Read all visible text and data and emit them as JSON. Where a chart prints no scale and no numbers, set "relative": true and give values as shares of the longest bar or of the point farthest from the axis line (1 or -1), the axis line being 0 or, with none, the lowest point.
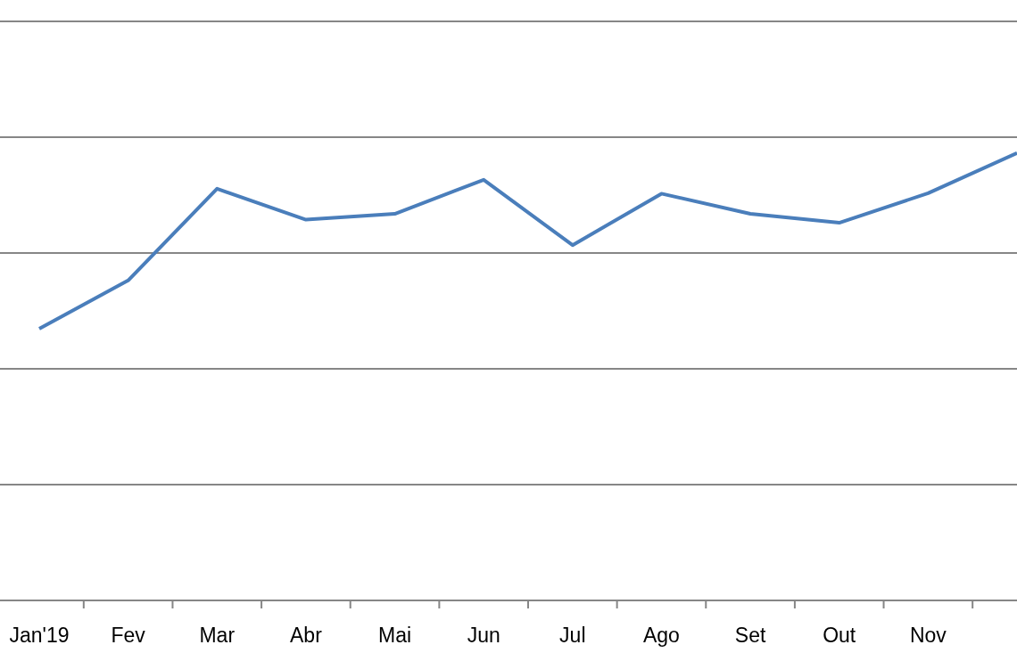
{
  "chart_data": {
    "type": "line",
    "relative": true,
    "grid": "y",
    "categories": [
      "Jan'19",
      "Fev",
      "Mar",
      "Abr",
      "Mai",
      "Jun",
      "Jul",
      "Ago",
      "Set",
      "Out",
      "Nov",
      null
    ],
    "series": [
      {
        "color": "#4a7ebb",
        "values": [
          0.607,
          0.715,
          0.92,
          0.851,
          0.864,
          0.94,
          0.794,
          0.909,
          0.864,
          0.844,
          0.91,
          1
        ]
      }
    ]
  }
}
